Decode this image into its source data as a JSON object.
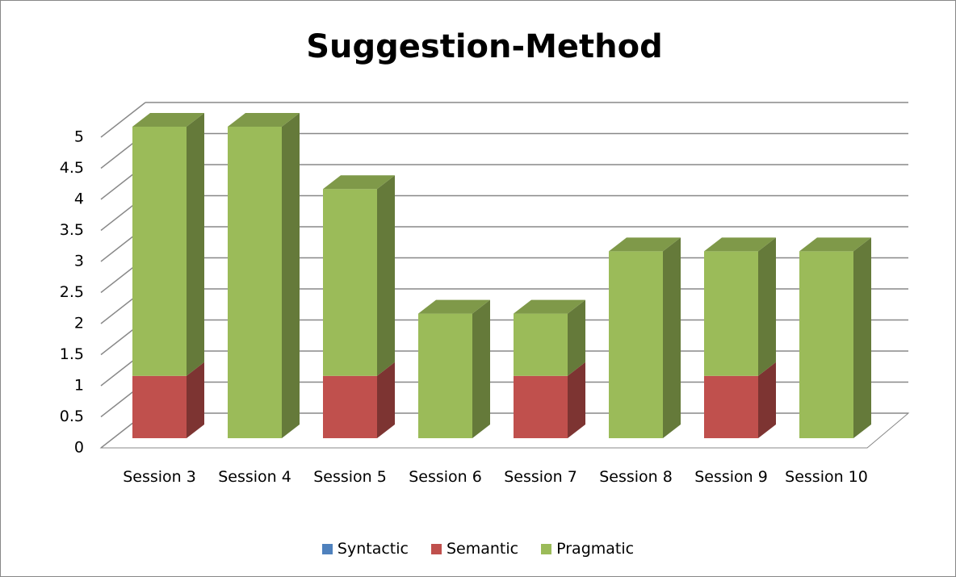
{
  "chart_data": {
    "type": "bar3d_stacked",
    "title": "Suggestion-Method",
    "categories": [
      "Session 3",
      "Session 4",
      "Session 5",
      "Session 6",
      "Session 7",
      "Session 8",
      "Session 9",
      "Session 10"
    ],
    "series": [
      {
        "name": "Syntactic",
        "color": "#4f81bd",
        "values": [
          0,
          0,
          0,
          0,
          0,
          0,
          0,
          0
        ]
      },
      {
        "name": "Semantic",
        "color": "#c0504d",
        "values": [
          1,
          0,
          1,
          0,
          1,
          0,
          1,
          0
        ]
      },
      {
        "name": "Pragmatic",
        "color": "#9bbb59",
        "values": [
          4,
          5,
          3,
          2,
          1,
          3,
          2,
          3
        ]
      }
    ],
    "ylim": [
      0,
      5
    ],
    "yticks": [
      0,
      0.5,
      1,
      1.5,
      2,
      2.5,
      3,
      3.5,
      4,
      4.5,
      5
    ],
    "grid": true,
    "legend": "bottom"
  }
}
